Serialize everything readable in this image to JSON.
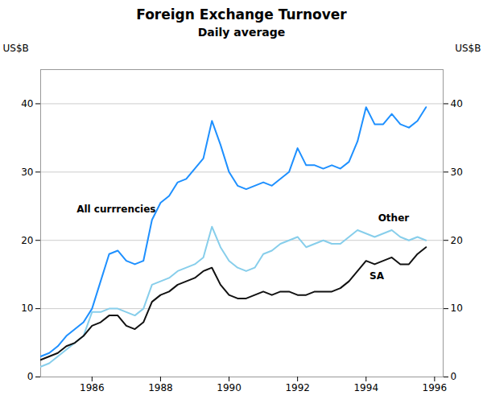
{
  "chart_data": {
    "type": "line",
    "title": "Foreign Exchange Turnover",
    "subtitle": "Daily average",
    "ylabel": "US$B",
    "y2label": "US$B",
    "x": [
      1984.5,
      1984.75,
      1985.0,
      1985.25,
      1985.5,
      1985.75,
      1986.0,
      1986.25,
      1986.5,
      1986.75,
      1987.0,
      1987.25,
      1987.5,
      1987.75,
      1988.0,
      1988.25,
      1988.5,
      1988.75,
      1989.0,
      1989.25,
      1989.5,
      1989.75,
      1990.0,
      1990.25,
      1990.5,
      1990.75,
      1991.0,
      1991.25,
      1991.5,
      1991.75,
      1992.0,
      1992.25,
      1992.5,
      1992.75,
      1993.0,
      1993.25,
      1993.5,
      1993.75,
      1994.0,
      1994.25,
      1994.5,
      1994.75,
      1995.0,
      1995.25,
      1995.5,
      1995.75
    ],
    "series": [
      {
        "name": "All currrencies",
        "color": "#1e90ff",
        "values": [
          3.0,
          3.5,
          4.5,
          6.0,
          7.0,
          8.0,
          10.0,
          14.0,
          18.0,
          18.5,
          17.0,
          16.5,
          17.0,
          23.0,
          25.5,
          26.5,
          28.5,
          29.0,
          30.5,
          32.0,
          37.5,
          34.0,
          30.0,
          28.0,
          27.5,
          28.0,
          28.5,
          28.0,
          29.0,
          30.0,
          33.5,
          31.0,
          31.0,
          30.5,
          31.0,
          30.5,
          31.5,
          34.5,
          39.5,
          37.0,
          37.0,
          38.5,
          37.0,
          36.5,
          37.5,
          39.5
        ]
      },
      {
        "name": "Other",
        "color": "#87ceeb",
        "values": [
          1.5,
          2.0,
          3.0,
          4.0,
          5.0,
          6.0,
          9.5,
          9.5,
          10.0,
          10.0,
          9.5,
          9.0,
          10.0,
          13.5,
          14.0,
          14.5,
          15.5,
          16.0,
          16.5,
          17.5,
          22.0,
          19.0,
          17.0,
          16.0,
          15.5,
          16.0,
          18.0,
          18.5,
          19.5,
          20.0,
          20.5,
          19.0,
          19.5,
          20.0,
          19.5,
          19.5,
          20.5,
          21.5,
          21.0,
          20.5,
          21.0,
          21.5,
          20.5,
          20.0,
          20.5,
          20.0
        ]
      },
      {
        "name": "SA",
        "color": "#111111",
        "values": [
          2.5,
          3.0,
          3.5,
          4.5,
          5.0,
          6.0,
          7.5,
          8.0,
          9.0,
          9.0,
          7.5,
          7.0,
          8.0,
          11.0,
          12.0,
          12.5,
          13.5,
          14.0,
          14.5,
          15.5,
          16.0,
          13.5,
          12.0,
          11.5,
          11.5,
          12.0,
          12.5,
          12.0,
          12.5,
          12.5,
          12.0,
          12.0,
          12.5,
          12.5,
          12.5,
          13.0,
          14.0,
          15.5,
          17.0,
          16.5,
          17.0,
          17.5,
          16.5,
          16.5,
          18.0,
          19.0
        ]
      }
    ],
    "annotations": [
      {
        "text": "All currrencies",
        "x": 1985.55,
        "y": 24.5
      },
      {
        "text": "Other",
        "x": 1994.35,
        "y": 23.2
      },
      {
        "text": "SA",
        "x": 1994.1,
        "y": 14.8
      }
    ],
    "xlim": [
      1984.5,
      1996.25
    ],
    "xticks": [
      1986,
      1988,
      1990,
      1992,
      1994,
      1996
    ],
    "ylim": [
      0,
      45
    ],
    "yticks": [
      0,
      10,
      20,
      30,
      40
    ],
    "y2lim": [
      0,
      45
    ],
    "y2ticks": [
      0,
      10,
      20,
      30,
      40
    ],
    "grid": true
  }
}
